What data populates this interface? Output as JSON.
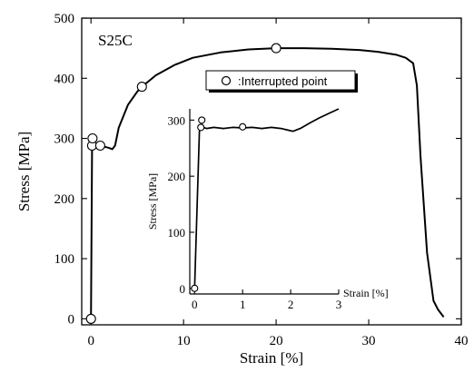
{
  "chart_data": [
    {
      "type": "line",
      "title": "",
      "xlabel": "Strain [%]",
      "ylabel": "Stress [MPa]",
      "xlim": [
        -1,
        40
      ],
      "ylim": [
        -10,
        500
      ],
      "xticks": [
        0,
        10,
        20,
        30,
        40
      ],
      "xtick_labels": [
        "0",
        "10",
        "20",
        "30",
        "40"
      ],
      "yticks": [
        0,
        100,
        200,
        300,
        400,
        500
      ],
      "ytick_labels": [
        "0",
        "100",
        "200",
        "300",
        "400",
        "500"
      ],
      "grid": false,
      "specimen_label": "S25C",
      "legend": {
        "label": ":Interrupted point",
        "position": "upper-center"
      },
      "series": [
        {
          "style": "line",
          "x": [
            0.0,
            0.12,
            0.17,
            0.2,
            0.5,
            1.0,
            1.5,
            2.0,
            2.3,
            2.6,
            3.0,
            4.0,
            5.0,
            5.5,
            7.0,
            9.0,
            11.0,
            14.0,
            17.0,
            20.0,
            23.0,
            26.0,
            29.0,
            31.0,
            33.0,
            34.0,
            34.8,
            35.2,
            35.6,
            36.3,
            37.0,
            37.5,
            38.1
          ],
          "y": [
            0,
            288,
            300,
            287,
            287,
            286,
            286,
            284,
            282,
            288,
            318,
            356,
            378,
            386,
            405,
            422,
            434,
            443,
            448,
            450,
            450,
            449,
            447,
            444,
            439,
            434,
            425,
            388,
            270,
            110,
            30,
            15,
            3
          ]
        },
        {
          "style": "markers",
          "name": ":Interrupted point",
          "x": [
            0,
            0.12,
            0.17,
            1.0,
            5.5,
            20.0
          ],
          "y": [
            0,
            288,
            300,
            288,
            386,
            450
          ]
        }
      ]
    },
    {
      "type": "line",
      "title": "",
      "xlabel": "Strain [%]",
      "ylabel": "Stress [MPa]",
      "xlim": [
        -0.1,
        3
      ],
      "ylim": [
        -10,
        320
      ],
      "xticks": [
        0,
        1,
        2,
        3
      ],
      "xtick_labels": [
        "0",
        "1",
        "2",
        "3"
      ],
      "yticks": [
        0,
        100,
        200,
        300
      ],
      "ytick_labels": [
        "0",
        "100",
        "200",
        "300"
      ],
      "grid": false,
      "series": [
        {
          "style": "line",
          "x": [
            0.0,
            0.1,
            0.15,
            0.18,
            0.25,
            0.4,
            0.6,
            0.8,
            1.0,
            1.2,
            1.4,
            1.6,
            1.8,
            1.95,
            2.05,
            2.2,
            2.4,
            2.6,
            2.8,
            3.0
          ],
          "y": [
            0,
            280,
            292,
            287,
            285,
            287,
            285,
            287,
            286,
            287,
            285,
            287,
            285,
            282,
            280,
            285,
            295,
            304,
            312,
            320
          ]
        },
        {
          "style": "markers",
          "x": [
            0,
            0.13,
            0.15,
            1.0
          ],
          "y": [
            0,
            287,
            300,
            288
          ]
        }
      ]
    }
  ]
}
